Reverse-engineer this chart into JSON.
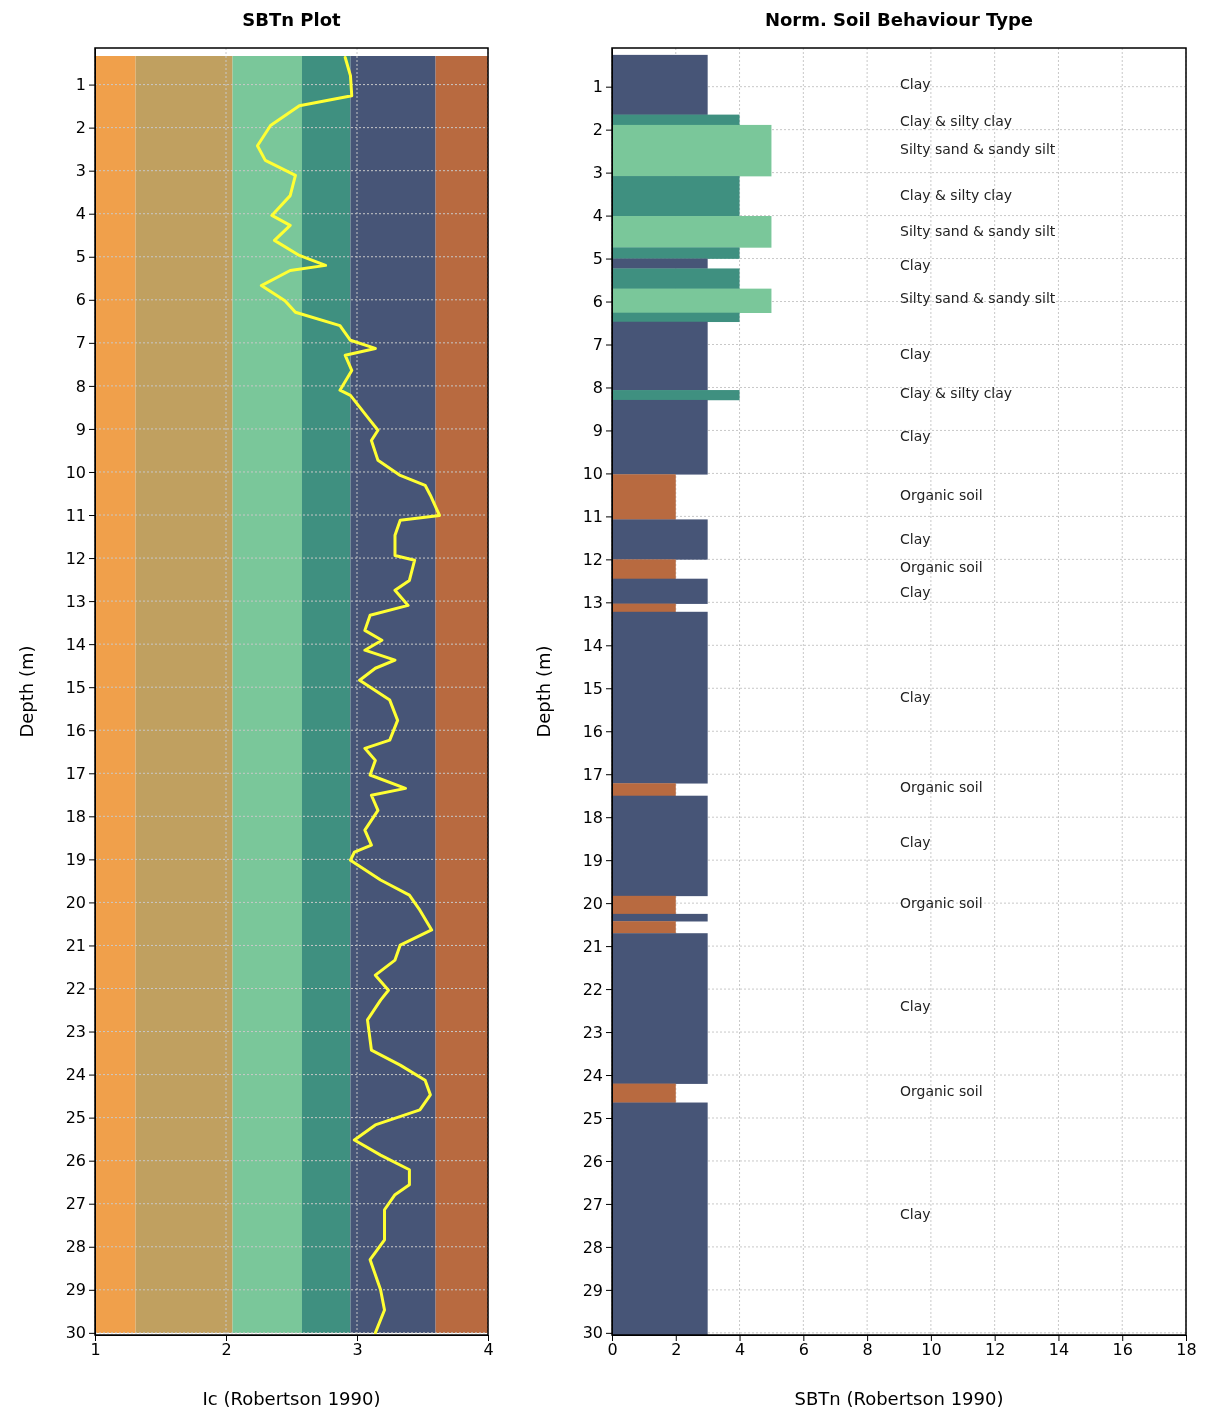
{
  "chart_data": [
    {
      "type": "line",
      "title": "SBTn Plot",
      "xlabel": "Ic (Robertson 1990)",
      "ylabel": "Depth (m)",
      "xlim": [
        1,
        4
      ],
      "xticks": [
        1,
        2,
        3,
        4
      ],
      "ylim": [
        30.05,
        0.15
      ],
      "yticks": [
        1,
        2,
        3,
        4,
        5,
        6,
        7,
        8,
        9,
        10,
        11,
        12,
        13,
        14,
        15,
        16,
        17,
        18,
        19,
        20,
        21,
        22,
        23,
        24,
        25,
        26,
        27,
        28,
        29,
        30
      ],
      "grid": true,
      "bands": [
        {
          "axis": "x",
          "from": 1,
          "to": 1.31,
          "color": "#f0a04b"
        },
        {
          "axis": "x",
          "from": 1.31,
          "to": 2.05,
          "color": "#c0a060"
        },
        {
          "axis": "x",
          "from": 2.05,
          "to": 2.58,
          "color": "#7ac79a"
        },
        {
          "axis": "x",
          "from": 2.58,
          "to": 2.95,
          "color": "#3f9080"
        },
        {
          "axis": "x",
          "from": 2.95,
          "to": 3.6,
          "color": "#475577"
        },
        {
          "axis": "x",
          "from": 3.6,
          "to": 4,
          "color": "#b86a40"
        }
      ],
      "series": [
        {
          "color": "#ffff33",
          "x": [
            2.91,
            2.95,
            2.96,
            2.56,
            2.34,
            2.24,
            2.3,
            2.53,
            2.49,
            2.35,
            2.49,
            2.37,
            2.56,
            2.76,
            2.49,
            2.27,
            2.45,
            2.53,
            2.87,
            2.95,
            3.14,
            2.91,
            2.96,
            2.87,
            2.95,
            3.1,
            3.16,
            3.11,
            3.16,
            3.33,
            3.52,
            3.56,
            3.63,
            3.33,
            3.29,
            3.29,
            3.44,
            3.4,
            3.29,
            3.39,
            3.1,
            3.06,
            3.19,
            3.06,
            3.29,
            3.14,
            3.02,
            3.25,
            3.31,
            3.25,
            3.06,
            3.14,
            3.1,
            3.37,
            3.11,
            3.16,
            3.06,
            3.11,
            2.98,
            2.95,
            3.18,
            3.4,
            3.48,
            3.57,
            3.33,
            3.29,
            3.14,
            3.24,
            3.18,
            3.08,
            3.11,
            3.33,
            3.52,
            3.56,
            3.48,
            3.14,
            2.98,
            3.18,
            3.4,
            3.4,
            3.29,
            3.21,
            3.21,
            3.1,
            3.18,
            3.21,
            3.14
          ],
          "values": [
            0.37,
            0.79,
            1.26,
            1.49,
            1.95,
            2.42,
            2.76,
            3.11,
            3.58,
            4.04,
            4.27,
            4.62,
            4.97,
            5.2,
            5.32,
            5.67,
            6.02,
            6.29,
            6.6,
            6.94,
            7.13,
            7.29,
            7.64,
            8.1,
            8.22,
            8.8,
            9.03,
            9.27,
            9.73,
            10.08,
            10.31,
            10.54,
            11.01,
            11.12,
            11.47,
            11.94,
            12.05,
            12.52,
            12.75,
            13.1,
            13.33,
            13.68,
            13.91,
            14.14,
            14.37,
            14.56,
            14.84,
            15.3,
            15.77,
            16.23,
            16.42,
            16.7,
            17.04,
            17.35,
            17.51,
            17.86,
            18.32,
            18.67,
            18.83,
            19.02,
            19.48,
            19.83,
            20.18,
            20.64,
            20.99,
            21.34,
            21.69,
            22.04,
            22.27,
            22.73,
            23.43,
            23.78,
            24.13,
            24.47,
            24.82,
            25.17,
            25.52,
            25.87,
            26.21,
            26.56,
            26.79,
            27.14,
            27.84,
            28.3,
            29.0,
            29.47,
            30.0
          ]
        }
      ]
    },
    {
      "type": "bar",
      "orientation": "horizontal",
      "title": "Norm. Soil Behaviour Type",
      "xlabel": "SBTn (Robertson 1990)",
      "ylabel": "Depth (m)",
      "xlim": [
        0,
        18
      ],
      "xticks": [
        0,
        2,
        4,
        6,
        8,
        10,
        12,
        14,
        16,
        18
      ],
      "ylim": [
        30.05,
        0.1
      ],
      "yticks": [
        1,
        2,
        3,
        4,
        5,
        6,
        7,
        8,
        9,
        10,
        11,
        12,
        13,
        14,
        15,
        16,
        17,
        18,
        19,
        20,
        21,
        22,
        23,
        24,
        25,
        26,
        27,
        28,
        29,
        30
      ],
      "grid": true,
      "x": [
        0.955,
        1.77,
        2.485,
        3.545,
        4.375,
        4.87,
        5.115,
        5.465,
        5.98,
        6.365,
        7.265,
        8.175,
        9.155,
        10.545,
        11.535,
        12.225,
        12.74,
        13.125,
        15.215,
        17.355,
        18.665,
        20.04,
        20.335,
        20.56,
        22.45,
        24.42,
        27.345
      ],
      "values": [
        3,
        4,
        5,
        4,
        5,
        4,
        3,
        4,
        5,
        4,
        3,
        4,
        3,
        2,
        3,
        2,
        3,
        2,
        3,
        2,
        3,
        2,
        3,
        2,
        3,
        2,
        3
      ],
      "colors": [
        "#475577",
        "#3f9080",
        "#7ac79a",
        "#3f9080",
        "#7ac79a",
        "#3f9080",
        "#475577",
        "#3f9080",
        "#7ac79a",
        "#3f9080",
        "#475577",
        "#3f9080",
        "#475577",
        "#b86a40",
        "#475577",
        "#b86a40",
        "#475577",
        "#b86a40",
        "#475577",
        "#b86a40",
        "#475577",
        "#b86a40",
        "#475577",
        "#b86a40",
        "#475577",
        "#b86a40",
        "#475577"
      ],
      "annotations": [
        "Clay",
        "Clay & silty clay",
        "Silty sand & sandy silt",
        "Clay & silty clay",
        "Silty sand & sandy silt",
        "Clay",
        "Silty sand & sandy silt",
        "Clay",
        "Clay & silty clay",
        "Clay",
        "Organic soil",
        "Clay",
        "Organic soil",
        "Clay",
        "Clay",
        "Organic soil",
        "Clay",
        "Organic soil",
        "Clay",
        "Organic soil",
        "Clay"
      ]
    }
  ]
}
